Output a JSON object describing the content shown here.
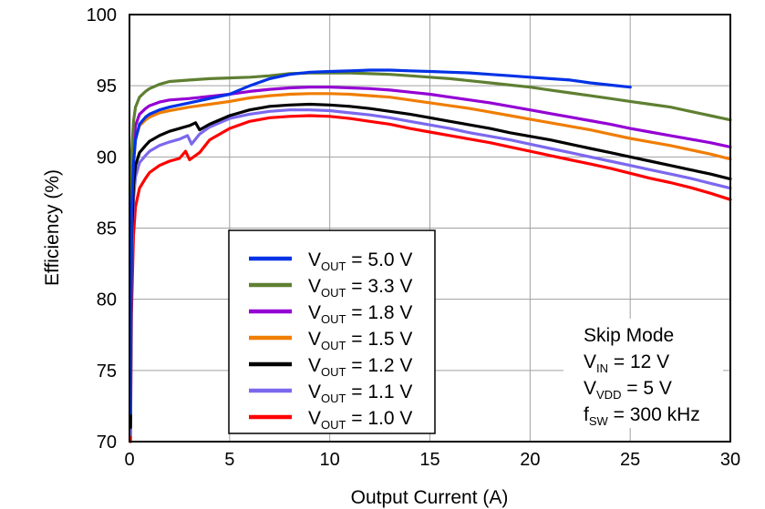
{
  "chart_data": {
    "type": "line",
    "title": "",
    "xlabel": "Output Current (A)",
    "ylabel": "Efficiency (%)",
    "xlim": [
      0,
      30
    ],
    "ylim": [
      70,
      100
    ],
    "grid": true,
    "legend_position": "bottom-left",
    "x_ticks": [
      "0",
      "5",
      "10",
      "15",
      "20",
      "25",
      "30"
    ],
    "y_ticks": [
      "70",
      "75",
      "80",
      "85",
      "90",
      "95",
      "100"
    ],
    "series": [
      {
        "name": "V_OUT = 5.0 V",
        "label_main": "V",
        "label_sub": "OUT",
        "label_rest": " = 5.0 V",
        "color": "#0032e6",
        "x": [
          0.05,
          0.1,
          0.2,
          0.3,
          0.5,
          0.8,
          1,
          1.5,
          2,
          3,
          4,
          5,
          6,
          7,
          8,
          9,
          10,
          11,
          12,
          13,
          14,
          15,
          16,
          17,
          18,
          19,
          20,
          21,
          22,
          23,
          24,
          25
        ],
        "y": [
          72,
          86,
          89.5,
          91.2,
          92.3,
          92.8,
          93.0,
          93.3,
          93.5,
          93.8,
          94.1,
          94.4,
          95.0,
          95.5,
          95.8,
          95.95,
          96.0,
          96.05,
          96.1,
          96.1,
          96.05,
          96.0,
          95.95,
          95.9,
          95.8,
          95.7,
          95.6,
          95.5,
          95.4,
          95.2,
          95.05,
          94.9
        ]
      },
      {
        "name": "V_OUT = 3.3 V",
        "label_main": "V",
        "label_sub": "OUT",
        "label_rest": " = 3.3 V",
        "color": "#5f7f32",
        "x": [
          0.05,
          0.1,
          0.2,
          0.3,
          0.5,
          0.8,
          1,
          1.5,
          2,
          3,
          4,
          5,
          6,
          7,
          8,
          9,
          10,
          11,
          12,
          13,
          14,
          15,
          16,
          17,
          18,
          19,
          20,
          21,
          22,
          23,
          24,
          25,
          26,
          27,
          28,
          29,
          30
        ],
        "y": [
          75,
          90,
          92.5,
          93.5,
          94.2,
          94.6,
          94.8,
          95.1,
          95.3,
          95.4,
          95.5,
          95.55,
          95.6,
          95.7,
          95.85,
          95.9,
          95.9,
          95.9,
          95.85,
          95.8,
          95.7,
          95.6,
          95.5,
          95.35,
          95.2,
          95.05,
          94.9,
          94.7,
          94.5,
          94.3,
          94.1,
          93.9,
          93.7,
          93.5,
          93.2,
          92.9,
          92.6
        ]
      },
      {
        "name": "V_OUT = 1.8 V",
        "label_main": "V",
        "label_sub": "OUT",
        "label_rest": " = 1.8 V",
        "color": "#9400d3",
        "x": [
          0.05,
          0.1,
          0.2,
          0.3,
          0.5,
          0.8,
          1,
          1.5,
          2,
          3,
          4,
          5,
          6,
          7,
          8,
          9,
          10,
          11,
          12,
          13,
          14,
          15,
          16,
          17,
          18,
          19,
          20,
          21,
          22,
          23,
          24,
          25,
          26,
          27,
          28,
          29,
          30
        ],
        "y": [
          73,
          88,
          91.0,
          92.2,
          93.0,
          93.4,
          93.6,
          93.85,
          94.0,
          94.1,
          94.25,
          94.4,
          94.6,
          94.75,
          94.85,
          94.9,
          94.9,
          94.85,
          94.8,
          94.7,
          94.55,
          94.4,
          94.2,
          94.0,
          93.8,
          93.55,
          93.3,
          93.05,
          92.8,
          92.55,
          92.3,
          92.0,
          91.75,
          91.5,
          91.25,
          91.0,
          90.7
        ]
      },
      {
        "name": "V_OUT = 1.5 V",
        "label_main": "V",
        "label_sub": "OUT",
        "label_rest": " = 1.5 V",
        "color": "#f07d00",
        "x": [
          0.05,
          0.1,
          0.2,
          0.3,
          0.5,
          0.8,
          1,
          1.5,
          2,
          3,
          4,
          5,
          6,
          7,
          8,
          9,
          10,
          11,
          12,
          13,
          14,
          15,
          16,
          17,
          18,
          19,
          20,
          21,
          22,
          23,
          24,
          25,
          26,
          27,
          28,
          29,
          30
        ],
        "y": [
          72,
          87,
          90.0,
          91.3,
          92.2,
          92.6,
          92.8,
          93.1,
          93.25,
          93.5,
          93.7,
          93.9,
          94.15,
          94.3,
          94.4,
          94.45,
          94.45,
          94.4,
          94.3,
          94.2,
          94.0,
          93.8,
          93.6,
          93.4,
          93.15,
          92.9,
          92.65,
          92.4,
          92.15,
          91.9,
          91.6,
          91.3,
          91.05,
          90.8,
          90.5,
          90.2,
          89.85
        ]
      },
      {
        "name": "V_OUT = 1.2 V",
        "label_main": "V",
        "label_sub": "OUT",
        "label_rest": " = 1.2 V",
        "color": "#000000",
        "x": [
          0.05,
          0.1,
          0.2,
          0.3,
          0.5,
          0.8,
          1,
          1.5,
          2,
          2.5,
          3,
          3.3,
          3.5,
          4,
          5,
          6,
          7,
          8,
          9,
          10,
          11,
          12,
          13,
          14,
          15,
          16,
          17,
          18,
          19,
          20,
          21,
          22,
          23,
          24,
          25,
          26,
          27,
          28,
          29,
          30
        ],
        "y": [
          71,
          84,
          88.0,
          89.4,
          90.3,
          90.8,
          91.1,
          91.5,
          91.8,
          92.0,
          92.2,
          92.4,
          91.9,
          92.3,
          92.9,
          93.3,
          93.55,
          93.65,
          93.7,
          93.65,
          93.55,
          93.4,
          93.2,
          93.0,
          92.75,
          92.5,
          92.25,
          92.0,
          91.7,
          91.45,
          91.2,
          90.9,
          90.6,
          90.3,
          90.0,
          89.7,
          89.4,
          89.1,
          88.8,
          88.45
        ]
      },
      {
        "name": "V_OUT = 1.1 V",
        "label_main": "V",
        "label_sub": "OUT",
        "label_rest": " = 1.1 V",
        "color": "#7b68ee",
        "x": [
          0.05,
          0.1,
          0.2,
          0.3,
          0.5,
          0.8,
          1,
          1.5,
          2,
          2.5,
          2.9,
          3.1,
          3.5,
          4,
          5,
          6,
          7,
          8,
          9,
          10,
          11,
          12,
          13,
          14,
          15,
          16,
          17,
          18,
          19,
          20,
          21,
          22,
          23,
          24,
          25,
          26,
          27,
          28,
          29,
          30
        ],
        "y": [
          70.5,
          83,
          87.0,
          88.6,
          89.6,
          90.1,
          90.4,
          90.8,
          91.05,
          91.25,
          91.5,
          90.9,
          91.6,
          92.1,
          92.7,
          93.0,
          93.2,
          93.3,
          93.3,
          93.25,
          93.1,
          92.95,
          92.75,
          92.5,
          92.25,
          92.0,
          91.7,
          91.45,
          91.2,
          90.9,
          90.6,
          90.3,
          90.0,
          89.7,
          89.4,
          89.1,
          88.8,
          88.5,
          88.15,
          87.8
        ]
      },
      {
        "name": "V_OUT = 1.0 V",
        "label_main": "V",
        "label_sub": "OUT",
        "label_rest": " = 1.0 V",
        "color": "#ff0000",
        "x": [
          0.05,
          0.1,
          0.2,
          0.3,
          0.5,
          0.8,
          1,
          1.5,
          2,
          2.5,
          2.8,
          3.0,
          3.5,
          4,
          5,
          6,
          7,
          8,
          9,
          10,
          11,
          12,
          13,
          14,
          15,
          16,
          17,
          18,
          19,
          20,
          21,
          22,
          23,
          24,
          25,
          26,
          27,
          28,
          29,
          30
        ],
        "y": [
          70,
          79,
          84.5,
          86.5,
          87.8,
          88.5,
          88.9,
          89.4,
          89.7,
          89.9,
          90.4,
          89.8,
          90.3,
          91.2,
          92.0,
          92.5,
          92.75,
          92.85,
          92.9,
          92.85,
          92.7,
          92.5,
          92.3,
          92.0,
          91.75,
          91.5,
          91.25,
          91.0,
          90.7,
          90.4,
          90.1,
          89.8,
          89.5,
          89.2,
          88.85,
          88.5,
          88.2,
          87.85,
          87.45,
          87.0
        ]
      }
    ]
  },
  "annotation": {
    "mode": "Skip Mode",
    "vin_main": "V",
    "vin_sub": "IN",
    "vin_rest": " = 12 V",
    "vvdd_main": "V",
    "vvdd_sub": "VDD",
    "vvdd_rest": " = 5 V",
    "fsw_main": "f",
    "fsw_sub": "SW",
    "fsw_rest": " = 300 kHz"
  }
}
